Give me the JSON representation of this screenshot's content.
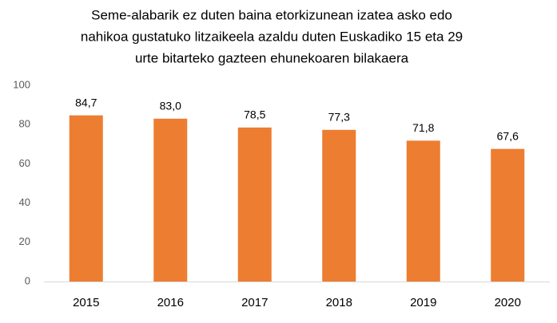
{
  "chart_data": {
    "type": "bar",
    "title": [
      "Seme-alabarik ez duten baina etorkizunean izatea asko edo",
      "nahikoa gustatuko litzaikeela azaldu duten Euskadiko 15 eta 29",
      "urte bitarteko gazteen ehunekoaren bilakaera"
    ],
    "categories": [
      "2015",
      "2016",
      "2017",
      "2018",
      "2019",
      "2020"
    ],
    "values": [
      84.7,
      83.0,
      78.5,
      77.3,
      71.8,
      67.6
    ],
    "value_labels": [
      "84,7",
      "83,0",
      "78,5",
      "77,3",
      "71,8",
      "67,6"
    ],
    "color": "#ed7d31",
    "ylim": [
      0,
      100
    ],
    "yticks": [
      0,
      20,
      40,
      60,
      80,
      100
    ],
    "grid": false
  }
}
